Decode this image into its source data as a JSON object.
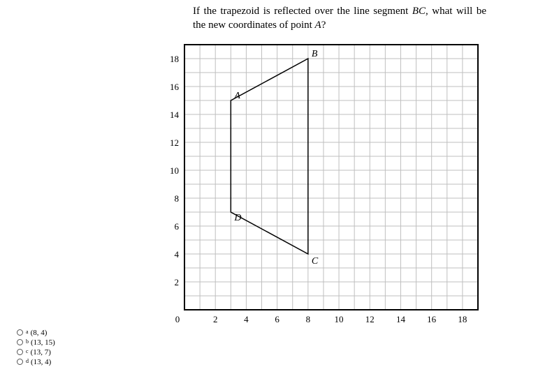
{
  "question": {
    "prefix": "If the trapezoid is reflected over the line segment ",
    "seg": "BC",
    "mid": ", what will be the new coordinates of point ",
    "pt": "A",
    "suffix": "?"
  },
  "chart": {
    "type": "scatter-line-grid",
    "xlim": [
      0,
      19
    ],
    "ylim": [
      0,
      19
    ],
    "xticks": [
      2,
      4,
      6,
      8,
      10,
      12,
      14,
      16,
      18
    ],
    "yticks": [
      2,
      4,
      6,
      8,
      10,
      12,
      14,
      16,
      18
    ],
    "tick_fontsize": 13,
    "bg": "#ffffff",
    "grid_color": "#bfbfbf",
    "border_color": "#000000",
    "line_color": "#000000",
    "line_width": 1.5,
    "points": {
      "A": {
        "x": 3,
        "y": 15
      },
      "B": {
        "x": 8,
        "y": 18
      },
      "C": {
        "x": 8,
        "y": 4
      },
      "D": {
        "x": 3,
        "y": 7
      }
    },
    "label_fontsize": 14,
    "label_offsets": {
      "A": {
        "dx": 5,
        "dy": -3,
        "anchor": "start"
      },
      "B": {
        "dx": 5,
        "dy": -3,
        "anchor": "start"
      },
      "C": {
        "dx": 5,
        "dy": 14,
        "anchor": "start"
      },
      "D": {
        "dx": 5,
        "dy": 12,
        "anchor": "start"
      }
    }
  },
  "answers": [
    {
      "letter": "a",
      "text": "(8, 4)"
    },
    {
      "letter": "b",
      "text": "(13, 15)"
    },
    {
      "letter": "c",
      "text": "(13, 7)"
    },
    {
      "letter": "d",
      "text": "(13, 4)"
    }
  ]
}
